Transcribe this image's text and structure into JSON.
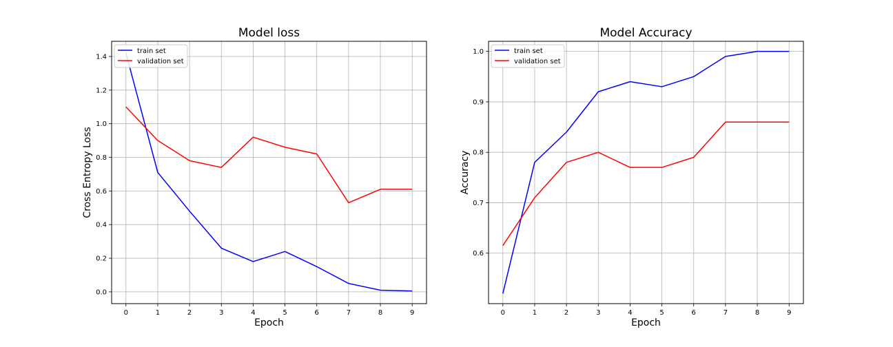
{
  "chart_data": [
    {
      "type": "line",
      "title": "Model loss",
      "xlabel": "Epoch",
      "ylabel": "Cross Entropy Loss",
      "x": [
        0,
        1,
        2,
        3,
        4,
        5,
        6,
        7,
        8,
        9
      ],
      "xlim": [
        -0.45,
        9.45
      ],
      "ylim": [
        -0.07,
        1.49
      ],
      "xticks": [
        "0",
        "1",
        "2",
        "3",
        "4",
        "5",
        "6",
        "7",
        "8",
        "9"
      ],
      "yticks": [
        "0.0",
        "0.2",
        "0.4",
        "0.6",
        "0.8",
        "1.0",
        "1.2",
        "1.4"
      ],
      "ytick_values": [
        0.0,
        0.2,
        0.4,
        0.6,
        0.8,
        1.0,
        1.2,
        1.4
      ],
      "grid": true,
      "legend_position": "top-left",
      "series": [
        {
          "name": "train set",
          "color": "#0000ff",
          "values": [
            1.42,
            0.71,
            0.48,
            0.26,
            0.18,
            0.24,
            0.15,
            0.05,
            0.01,
            0.005
          ]
        },
        {
          "name": "validation set",
          "color": "#ff0000",
          "values": [
            1.1,
            0.9,
            0.78,
            0.74,
            0.92,
            0.86,
            0.82,
            0.53,
            0.61,
            0.61
          ]
        }
      ]
    },
    {
      "type": "line",
      "title": "Model Accuracy",
      "xlabel": "Epoch",
      "ylabel": "Accuracy",
      "x": [
        0,
        1,
        2,
        3,
        4,
        5,
        6,
        7,
        8,
        9
      ],
      "xlim": [
        -0.45,
        9.45
      ],
      "ylim": [
        0.5,
        1.02
      ],
      "xticks": [
        "0",
        "1",
        "2",
        "3",
        "4",
        "5",
        "6",
        "7",
        "8",
        "9"
      ],
      "yticks": [
        "0.6",
        "0.7",
        "0.8",
        "0.9",
        "1.0"
      ],
      "ytick_values": [
        0.6,
        0.7,
        0.8,
        0.9,
        1.0
      ],
      "grid": true,
      "legend_position": "top-left",
      "series": [
        {
          "name": "train set",
          "color": "#0000ff",
          "values": [
            0.52,
            0.78,
            0.84,
            0.92,
            0.94,
            0.93,
            0.95,
            0.99,
            1.0,
            1.0
          ]
        },
        {
          "name": "validation set",
          "color": "#ff0000",
          "values": [
            0.615,
            0.71,
            0.78,
            0.8,
            0.77,
            0.77,
            0.79,
            0.86,
            0.86,
            0.86
          ]
        }
      ]
    }
  ]
}
